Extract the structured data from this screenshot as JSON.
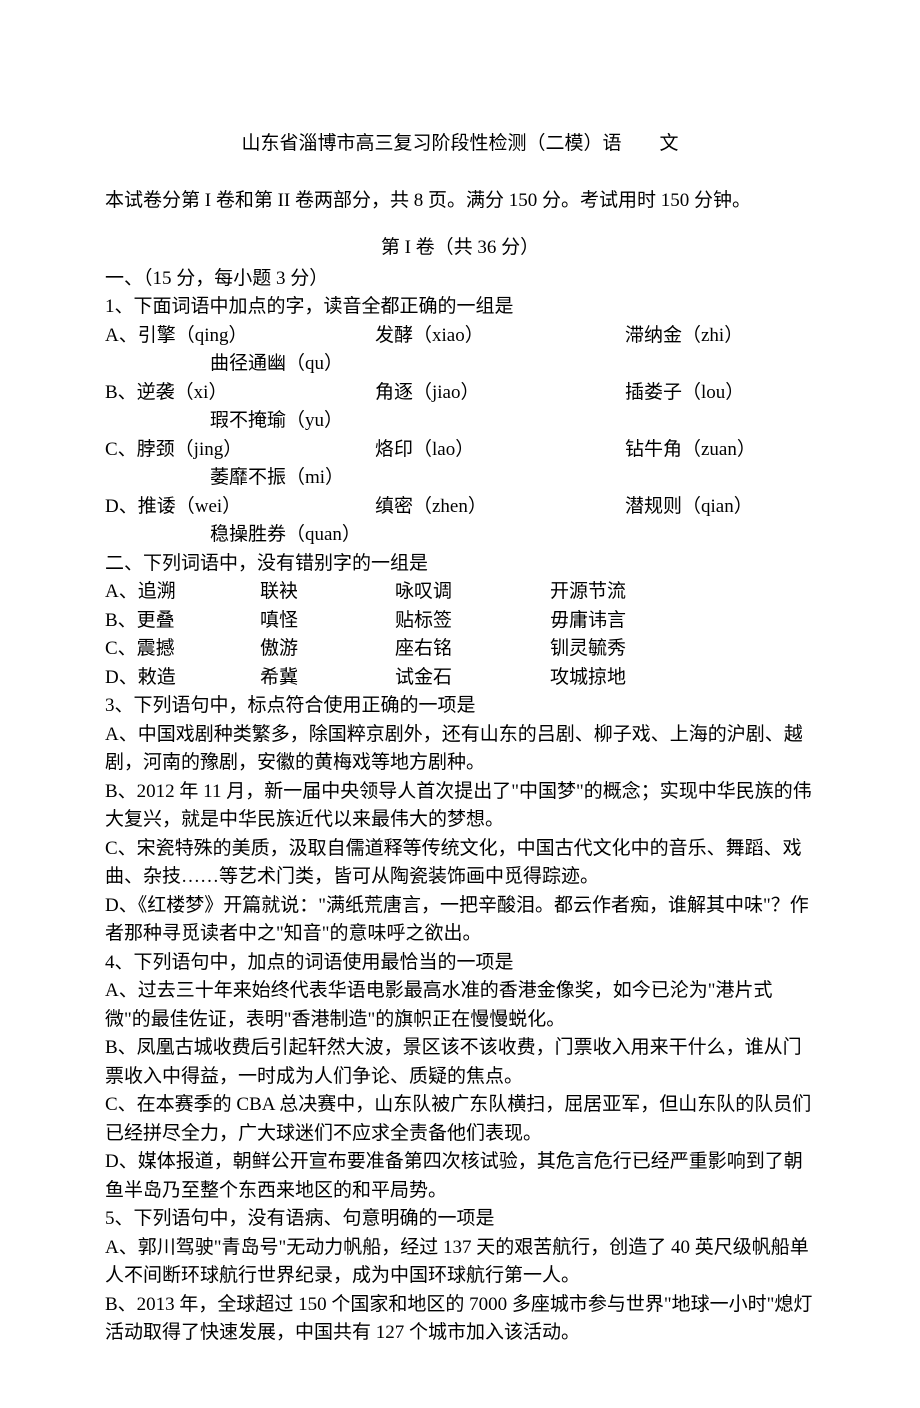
{
  "title": "山东省淄博市高三复习阶段性检测（二模）语　　文",
  "intro": "本试卷分第 I 卷和第 II 卷两部分，共 8 页。满分 150 分。考试用时 150 分钟。",
  "subtitle": "第 I 卷（共 36 分）",
  "section1": "一、（15 分，每小题 3 分）",
  "q1": "1、下面词语中加点的字，读音全都正确的一组是",
  "q1A": {
    "c1": "A、引擎（qing）",
    "c2": "发酵（xiao）",
    "c3": "滞纳金（zhi）",
    "c4": "曲径通幽（qu）"
  },
  "q1B": {
    "c1": "B、逆袭（xi）",
    "c2": "角逐（jiao）",
    "c3": "插娄子（lou）",
    "c4": "瑕不掩瑜（yu）"
  },
  "q1C": {
    "c1": "C、脖颈（jing）",
    "c2": "烙印（lao）",
    "c3": "钻牛角（zuan）",
    "c4": "萎靡不振（mi）"
  },
  "q1D": {
    "c1": "D、推诿（wei）",
    "c2": "缜密（zhen）",
    "c3": "潜规则（qian）",
    "c4": "稳操胜券（quan）"
  },
  "q2": "二、下列词语中，没有错别字的一组是",
  "q2A": {
    "w1": "A、追溯",
    "w2": "联袂",
    "w3": "咏叹调",
    "w4": "开源节流"
  },
  "q2B": {
    "w1": "B、更叠",
    "w2": "嗔怪",
    "w3": "贴标签",
    "w4": "毋庸讳言"
  },
  "q2C": {
    "w1": "C、震撼",
    "w2": "傲游",
    "w3": "座右铭",
    "w4": "钏灵毓秀"
  },
  "q2D": {
    "w1": "D、敕造",
    "w2": "希冀",
    "w3": "试金石",
    "w4": "攻城掠地"
  },
  "q3": "3、下列语句中，标点符合使用正确的一项是",
  "q3A": "A、中国戏剧种类繁多，除国粹京剧外，还有山东的吕剧、柳子戏、上海的沪剧、越剧，河南的豫剧，安徽的黄梅戏等地方剧种。",
  "q3B": "B、2012 年 11 月，新一届中央领导人首次提出了\"中国梦\"的概念；实现中华民族的伟大复兴，就是中华民族近代以来最伟大的梦想。",
  "q3C": "C、宋瓷特殊的美质，汲取自儒道释等传统文化，中国古代文化中的音乐、舞蹈、戏曲、杂技……等艺术门类，皆可从陶瓷装饰画中觅得踪迹。",
  "q3D": "D、《红楼梦》开篇就说：\"满纸荒唐言，一把辛酸泪。都云作者痴，谁解其中味\"？作者那种寻觅读者中之\"知音\"的意味呼之欲出。",
  "q4": "4、下列语句中，加点的词语使用最恰当的一项是",
  "q4A": "A、过去三十年来始终代表华语电影最高水准的香港金像奖，如今已沦为\"港片式微\"的最佳佐证，表明\"香港制造\"的旗帜正在慢慢蜕化。",
  "q4B": "B、凤凰古城收费后引起轩然大波，景区该不该收费，门票收入用来干什么，谁从门票收入中得益，一时成为人们争论、质疑的焦点。",
  "q4C": "C、在本赛季的 CBA 总决赛中，山东队被广东队横扫，屈居亚军，但山东队的队员们已经拼尽全力，广大球迷们不应求全责备他们表现。",
  "q4D": "D、媒体报道，朝鲜公开宣布要准备第四次核试验，其危言危行已经严重影响到了朝鱼半岛乃至整个东西来地区的和平局势。",
  "q5": "5、下列语句中，没有语病、句意明确的一项是",
  "q5A": "A、郭川驾驶\"青岛号\"无动力帆船，经过 137 天的艰苦航行，创造了 40 英尺级帆船单人不间断环球航行世界纪录，成为中国环球航行第一人。",
  "q5B": "B、2013 年，全球超过 150 个国家和地区的 7000 多座城市参与世界\"地球一小时\"熄灯活动取得了快速发展，中国共有 127 个城市加入该活动。"
}
